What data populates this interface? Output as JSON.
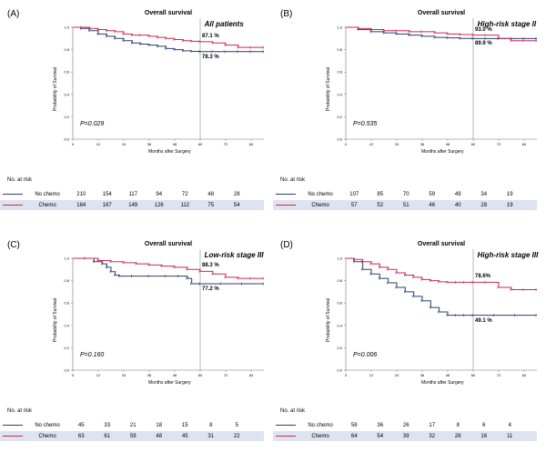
{
  "colors": {
    "no_chemo": "#2c3f70",
    "chemo": "#cc2855",
    "grid_table": "#dde3ef"
  },
  "panels": [
    {
      "label": "(A)",
      "title": "Overall survival",
      "subtitle": "All patients",
      "p_value": "P=0.029",
      "chemo_pct": "87.1 %",
      "nochemo_pct": "78.3 %",
      "ylabel": "Probability of Survival",
      "xlabel": "Months after Surgery",
      "risk_title": "No. at risk",
      "risk": {
        "nochemo_label": "No chemo",
        "chemo_label": "Chemo",
        "nochemo": [
          "210",
          "154",
          "117",
          "94",
          "72",
          "48",
          "28"
        ],
        "chemo": [
          "184",
          "167",
          "149",
          "126",
          "112",
          "75",
          "54"
        ]
      }
    },
    {
      "label": "(B)",
      "title": "Overall survival",
      "subtitle": "High-risk stage II",
      "p_value": "P=0.535",
      "chemo_pct": "93.0 %",
      "nochemo_pct": "89.9 %",
      "ylabel": "Probability of Survival",
      "xlabel": "Months after Surgery",
      "risk_title": "No. at risk",
      "risk": {
        "nochemo_label": "No chemo",
        "chemo_label": "Chemo",
        "nochemo": [
          "107",
          "85",
          "70",
          "59",
          "49",
          "34",
          "19"
        ],
        "chemo": [
          "57",
          "52",
          "51",
          "46",
          "40",
          "28",
          "19"
        ]
      }
    },
    {
      "label": "(C)",
      "title": "Overall survival",
      "subtitle": "Low-risk stage III",
      "p_value": "P=0.160",
      "chemo_pct": "88.3 %",
      "nochemo_pct": "77.2 %",
      "ylabel": "Probability of Survival",
      "xlabel": "Months after Surgery",
      "risk_title": "No. at risk",
      "risk": {
        "nochemo_label": "No chemo",
        "chemo_label": "Chemo",
        "nochemo": [
          "45",
          "33",
          "21",
          "18",
          "15",
          "8",
          "5"
        ],
        "chemo": [
          "63",
          "61",
          "59",
          "48",
          "45",
          "31",
          "22"
        ]
      }
    },
    {
      "label": "(D)",
      "title": "Overall survival",
      "subtitle": "High-risk stage III",
      "p_value": "P=0.006",
      "chemo_pct": "78.6%",
      "nochemo_pct": "49.1 %",
      "ylabel": "Probability of Survival",
      "xlabel": "Months after Surgery",
      "risk_title": "No. at risk",
      "risk": {
        "nochemo_label": "No chemo",
        "chemo_label": "Chemo",
        "nochemo": [
          "58",
          "36",
          "26",
          "17",
          "8",
          "6",
          "4"
        ],
        "chemo": [
          "64",
          "54",
          "39",
          "32",
          "26",
          "16",
          "11"
        ]
      }
    }
  ],
  "chart_data": [
    {
      "type": "line",
      "title": "Overall survival",
      "subtitle": "All patients",
      "xlabel": "Months after Surgery",
      "ylabel": "Probability of Survival",
      "xlim": [
        0,
        90
      ],
      "ylim": [
        0,
        1.0
      ],
      "x_ticks": [
        "0",
        "12",
        "24",
        "36",
        "48",
        "60",
        "72",
        "84"
      ],
      "y_ticks": [
        "0.0",
        "0.2",
        "0.4",
        "0.6",
        "0.8",
        "1.0"
      ],
      "reference_x": 60,
      "series": [
        {
          "name": "No chemo",
          "x": [
            0,
            4,
            8,
            12,
            16,
            20,
            24,
            28,
            32,
            36,
            40,
            44,
            48,
            52,
            56,
            60,
            66,
            72,
            78,
            84,
            90
          ],
          "y": [
            1.0,
            0.99,
            0.97,
            0.94,
            0.92,
            0.9,
            0.88,
            0.86,
            0.85,
            0.84,
            0.83,
            0.81,
            0.8,
            0.79,
            0.785,
            0.783,
            0.783,
            0.783,
            0.783,
            0.783,
            0.783
          ]
        },
        {
          "name": "Chemo",
          "x": [
            0,
            4,
            8,
            12,
            16,
            20,
            24,
            28,
            32,
            36,
            40,
            44,
            48,
            52,
            56,
            60,
            66,
            72,
            78,
            84,
            90
          ],
          "y": [
            1.0,
            1.0,
            0.99,
            0.98,
            0.97,
            0.96,
            0.94,
            0.93,
            0.93,
            0.92,
            0.91,
            0.9,
            0.89,
            0.88,
            0.875,
            0.871,
            0.86,
            0.84,
            0.82,
            0.82,
            0.82
          ]
        }
      ]
    },
    {
      "type": "line",
      "title": "Overall survival",
      "subtitle": "High-risk stage II",
      "xlabel": "Months after Surgery",
      "ylabel": "Probability of Survival",
      "xlim": [
        0,
        90
      ],
      "ylim": [
        0,
        1.0
      ],
      "x_ticks": [
        "0",
        "12",
        "24",
        "36",
        "48",
        "60",
        "72",
        "84"
      ],
      "y_ticks": [
        "0.0",
        "0.2",
        "0.4",
        "0.6",
        "0.8",
        "1.0"
      ],
      "reference_x": 60,
      "series": [
        {
          "name": "No chemo",
          "x": [
            0,
            6,
            12,
            18,
            24,
            30,
            36,
            42,
            48,
            54,
            60,
            66,
            72,
            78,
            84,
            90
          ],
          "y": [
            1.0,
            0.98,
            0.96,
            0.95,
            0.94,
            0.93,
            0.92,
            0.91,
            0.905,
            0.9,
            0.899,
            0.899,
            0.899,
            0.899,
            0.899,
            0.899
          ]
        },
        {
          "name": "Chemo",
          "x": [
            0,
            6,
            12,
            18,
            24,
            30,
            36,
            42,
            48,
            54,
            60,
            66,
            72,
            78,
            84,
            90
          ],
          "y": [
            1.0,
            0.99,
            0.98,
            0.97,
            0.97,
            0.96,
            0.96,
            0.95,
            0.94,
            0.935,
            0.93,
            0.93,
            0.9,
            0.88,
            0.88,
            0.88
          ]
        }
      ]
    },
    {
      "type": "line",
      "title": "Overall survival",
      "subtitle": "Low-risk stage III",
      "xlabel": "Months after Surgery",
      "ylabel": "Probability of Survival",
      "xlim": [
        0,
        90
      ],
      "ylim": [
        0,
        1.0
      ],
      "x_ticks": [
        "0",
        "12",
        "24",
        "36",
        "48",
        "60",
        "72",
        "84"
      ],
      "y_ticks": [
        "0.0",
        "0.2",
        "0.4",
        "0.6",
        "0.8",
        "1.0"
      ],
      "reference_x": 60,
      "series": [
        {
          "name": "No chemo",
          "x": [
            0,
            6,
            10,
            14,
            16,
            18,
            20,
            22,
            28,
            36,
            44,
            50,
            54,
            56,
            60,
            70,
            80,
            90
          ],
          "y": [
            1.0,
            1.0,
            0.97,
            0.95,
            0.92,
            0.88,
            0.85,
            0.84,
            0.84,
            0.84,
            0.84,
            0.84,
            0.82,
            0.772,
            0.772,
            0.772,
            0.772,
            0.772
          ]
        },
        {
          "name": "Chemo",
          "x": [
            0,
            6,
            12,
            18,
            24,
            30,
            36,
            42,
            48,
            54,
            60,
            66,
            72,
            78,
            84,
            90
          ],
          "y": [
            1.0,
            1.0,
            0.98,
            0.97,
            0.96,
            0.95,
            0.94,
            0.93,
            0.92,
            0.9,
            0.883,
            0.86,
            0.83,
            0.82,
            0.82,
            0.82
          ]
        }
      ]
    },
    {
      "type": "line",
      "title": "Overall survival",
      "subtitle": "High-risk stage III",
      "xlabel": "Months after Surgery",
      "ylabel": "Probability of Survival",
      "xlim": [
        0,
        90
      ],
      "ylim": [
        0,
        1.0
      ],
      "x_ticks": [
        "0",
        "12",
        "24",
        "36",
        "48",
        "60",
        "72",
        "84"
      ],
      "y_ticks": [
        "0.0",
        "0.2",
        "0.4",
        "0.6",
        "0.8",
        "1.0"
      ],
      "reference_x": 60,
      "series": [
        {
          "name": "No chemo",
          "x": [
            0,
            4,
            8,
            12,
            16,
            20,
            24,
            28,
            32,
            36,
            40,
            44,
            48,
            52,
            56,
            60,
            70,
            80,
            90
          ],
          "y": [
            1.0,
            0.97,
            0.9,
            0.86,
            0.82,
            0.78,
            0.74,
            0.7,
            0.66,
            0.62,
            0.56,
            0.52,
            0.491,
            0.491,
            0.491,
            0.491,
            0.491,
            0.491,
            0.491
          ]
        },
        {
          "name": "Chemo",
          "x": [
            0,
            4,
            8,
            12,
            16,
            20,
            24,
            28,
            32,
            36,
            40,
            44,
            48,
            52,
            56,
            60,
            66,
            72,
            78,
            84,
            90
          ],
          "y": [
            1.0,
            0.99,
            0.97,
            0.95,
            0.92,
            0.9,
            0.87,
            0.85,
            0.83,
            0.81,
            0.8,
            0.79,
            0.786,
            0.786,
            0.786,
            0.786,
            0.786,
            0.74,
            0.72,
            0.72,
            0.72
          ]
        }
      ]
    }
  ]
}
